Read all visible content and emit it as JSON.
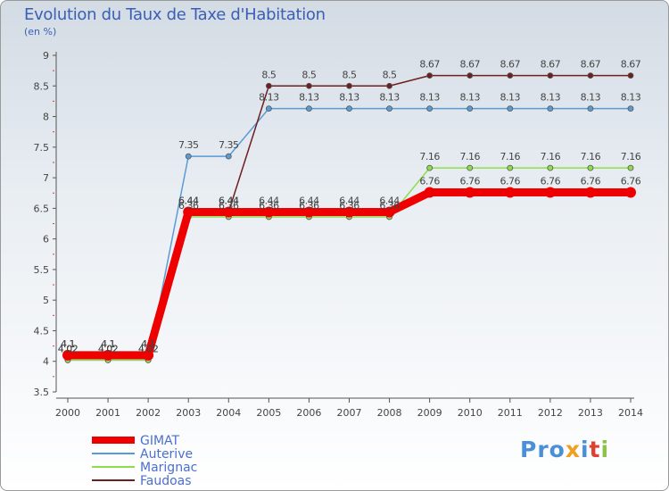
{
  "header": {
    "title": "Evolution du Taux de Taxe d'Habitation",
    "subtitle": "(en %)"
  },
  "logo": {
    "text": "Proxiti"
  },
  "chart_data": {
    "type": "line",
    "title": "Evolution du Taux de Taxe d'Habitation",
    "ylabel": "(en %)",
    "xlabel": "",
    "ylim": [
      3.5,
      9
    ],
    "yticks": [
      "3.5",
      "4",
      "4.5",
      "5",
      "5.5",
      "6",
      "6.5",
      "7",
      "7.5",
      "8",
      "8.5",
      "9"
    ],
    "grid": false,
    "legend_position": "bottom-left",
    "categories": [
      "2000",
      "2001",
      "2002",
      "2003",
      "2004",
      "2005",
      "2006",
      "2007",
      "2008",
      "2009",
      "2010",
      "2011",
      "2012",
      "2013",
      "2014"
    ],
    "series": [
      {
        "name": "GIMAT",
        "color": "#ee0000",
        "values": [
          4.1,
          4.1,
          4.1,
          6.44,
          6.44,
          6.44,
          6.44,
          6.44,
          6.44,
          6.76,
          6.76,
          6.76,
          6.76,
          6.76,
          6.76
        ],
        "labels": [
          "4.1",
          "4.1",
          "4.1",
          "6.44",
          "6.44",
          "6.44",
          "6.44",
          "6.44",
          "6.44",
          "6.76",
          "6.76",
          "6.76",
          "6.76",
          "6.76",
          "6.76"
        ]
      },
      {
        "name": "Auterive",
        "color": "#5b9bd5",
        "values": [
          4.02,
          4.02,
          4.02,
          7.35,
          7.35,
          8.13,
          8.13,
          8.13,
          8.13,
          8.13,
          8.13,
          8.13,
          8.13,
          8.13,
          8.13
        ],
        "labels": [
          "4.02",
          "4.02",
          "4.02",
          "7.35",
          "7.35",
          "8.13",
          "8.13",
          "8.13",
          "8.13",
          "8.13",
          "8.13",
          "8.13",
          "8.13",
          "8.13",
          "8.13"
        ]
      },
      {
        "name": "Marignac",
        "color": "#8fdc4e",
        "values": [
          4.02,
          4.02,
          4.02,
          6.36,
          6.36,
          6.36,
          6.36,
          6.36,
          6.36,
          7.16,
          7.16,
          7.16,
          7.16,
          7.16,
          7.16
        ],
        "labels": [
          "4.02",
          "4.02",
          "4.02",
          "6.36",
          "6.36",
          "6.36",
          "6.36",
          "6.36",
          "6.36",
          "7.16",
          "7.16",
          "7.16",
          "7.16",
          "7.16",
          "7.16"
        ]
      },
      {
        "name": "Faudoas",
        "color": "#6e1f1f",
        "values": [
          4.1,
          4.1,
          4.1,
          6.44,
          6.44,
          8.5,
          8.5,
          8.5,
          8.5,
          8.67,
          8.67,
          8.67,
          8.67,
          8.67,
          8.67
        ],
        "labels": [
          "4.1",
          "4.1",
          "4.1",
          "6.44",
          "6.44",
          "8.5",
          "8.5",
          "8.5",
          "8.5",
          "8.67",
          "8.67",
          "8.67",
          "8.67",
          "8.67",
          "8.67"
        ]
      }
    ]
  }
}
